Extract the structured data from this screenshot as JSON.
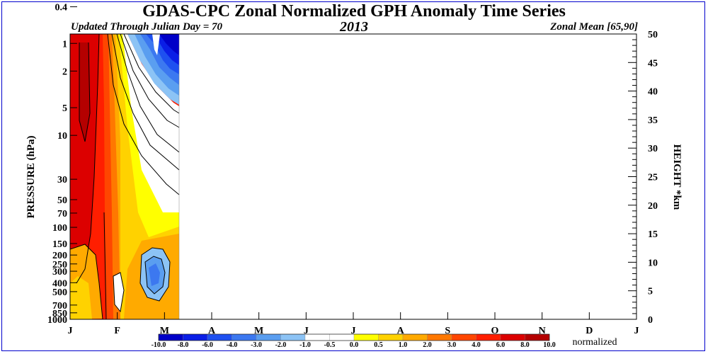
{
  "chart_data": {
    "type": "heatmap",
    "title": "GDAS-CPC Zonal Normalized GPH Anomaly Time Series",
    "subtitle_left": "Updated Through Julian Day =  70",
    "subtitle_center": "2013",
    "subtitle_right": "Zonal Mean [65,90]",
    "ylabel_left": "PRESSURE (hPa)",
    "ylabel_right": "HEIGHT *km",
    "pressure_ticks": [
      "0.4",
      "1",
      "2",
      "5",
      "10",
      "30",
      "50",
      "70",
      "100",
      "150",
      "200",
      "250",
      "300",
      "400",
      "500",
      "700",
      "850",
      "1000"
    ],
    "height_ticks": [
      "0",
      "5",
      "10",
      "15",
      "20",
      "25",
      "30",
      "35",
      "40",
      "45",
      "50"
    ],
    "month_labels": [
      "J",
      "F",
      "M",
      "A",
      "M",
      "J",
      "J",
      "A",
      "S",
      "O",
      "N",
      "D",
      "J"
    ],
    "data_through_day": 70,
    "colorbar": {
      "unit": "normalized",
      "tick_labels": [
        "-10.0",
        "-8.0",
        "-6.0",
        "-4.0",
        "-3.0",
        "-2.0",
        "-1.0",
        "-0.5",
        "0.0",
        "0.5",
        "1.0",
        "2.0",
        "3.0",
        "4.0",
        "6.0",
        "8.0",
        "10.0"
      ],
      "colors": [
        "#0000c8",
        "#0a1ee6",
        "#1e50f0",
        "#3c78f0",
        "#5a9ef0",
        "#8cc3f5",
        "#ffffff",
        "#ffffff",
        "#ffff00",
        "#ffd200",
        "#ffaa00",
        "#ff7800",
        "#ff4600",
        "#ff1e00",
        "#dc0000",
        "#b40000"
      ]
    }
  }
}
